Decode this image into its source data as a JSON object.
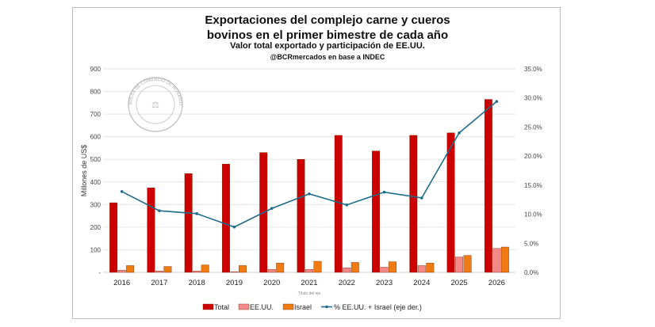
{
  "chart_data": {
    "type": "bar",
    "title": "Exportaciones del complejo carne y cueros bovinos en el primer bimestre de cada año",
    "subtitle": "Valor total exportado y participación de EE.UU.",
    "source": "@BCRmercados en base a INDEC",
    "xlabel": "Título del eje",
    "ylabel": "Millones de US$",
    "ylim": [
      0,
      900
    ],
    "y2lim": [
      0,
      35
    ],
    "yticks": [
      "-",
      "100",
      "200",
      "300",
      "400",
      "500",
      "600",
      "700",
      "800",
      "900"
    ],
    "y2ticks": [
      "0.0%",
      "5.0%",
      "10.0%",
      "15.0%",
      "20.0%",
      "25.0%",
      "30.0%",
      "35.0%"
    ],
    "grid": true,
    "legend_position": "bottom",
    "categories": [
      "2016",
      "2017",
      "2018",
      "2019",
      "2020",
      "2021",
      "2022",
      "2023",
      "2024",
      "2025",
      "2026"
    ],
    "series": [
      {
        "name": "Total",
        "type": "bar",
        "color": "#cc0000",
        "values": [
          308,
          374,
          437,
          479,
          530,
          500,
          606,
          537,
          606,
          617,
          765
        ]
      },
      {
        "name": "EE.UU.",
        "type": "bar",
        "color": "#f4898a",
        "values": [
          10,
          6,
          6,
          3,
          13,
          13,
          20,
          23,
          30,
          68,
          106
        ]
      },
      {
        "name": "Israel",
        "type": "bar",
        "color": "#f07b12",
        "values": [
          30,
          26,
          33,
          30,
          41,
          49,
          44,
          47,
          41,
          75,
          112
        ]
      },
      {
        "name": "% EE.UU. + Israel (eje der.)",
        "type": "line",
        "axis": "right",
        "color": "#1f6b8a",
        "values": [
          13.9,
          10.6,
          10.1,
          7.8,
          11.0,
          13.5,
          11.6,
          13.8,
          12.8,
          24.0,
          29.4
        ]
      }
    ],
    "watermark": "BOLSA DE COMERCIO DE ROSARIO"
  }
}
